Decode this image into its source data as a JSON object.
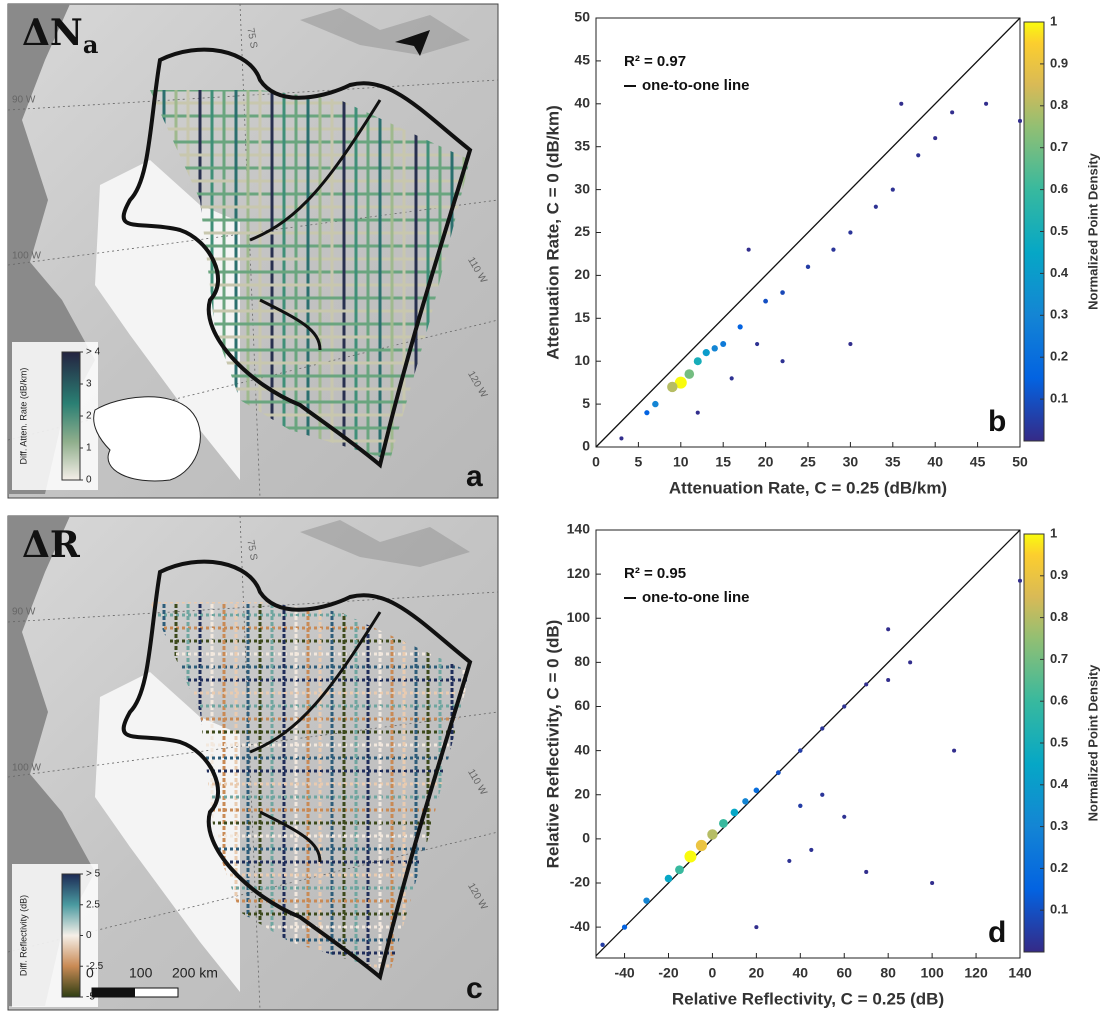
{
  "maps": [
    {
      "title": "ΔN",
      "title_subscript": "a",
      "panel": "a",
      "lat_label": "75 S",
      "lon_labels": [
        "90 W",
        "100 W",
        "110 W",
        "120 W"
      ],
      "colorbar": {
        "label": "Diff. Atten. Rate (dB/km)",
        "ticks": [
          0,
          1,
          2,
          3,
          {
            "value": 4,
            "label": "> 4"
          }
        ]
      }
    },
    {
      "title": "ΔR",
      "panel": "c",
      "lat_label": "75 S",
      "lon_labels": [
        "90 W",
        "100 W",
        "110 W",
        "120 W"
      ],
      "colorbar": {
        "label": "Diff. Reflectivity (dB)",
        "ticks": [
          -5,
          -2.5,
          0,
          2.5,
          {
            "value": 5,
            "label": "> 5"
          }
        ]
      },
      "scale_bar": {
        "ticks": [
          0,
          100,
          {
            "value": 200,
            "label": "200 km"
          }
        ]
      }
    }
  ],
  "chart_data": [
    {
      "type": "scatter",
      "panel": "b",
      "x_label": "Attenuation Rate, C = 0.25 (dB/km)",
      "y_label": "Attenuation Rate, C = 0 (dB/km)",
      "annotation": "R² = 0.97",
      "legend": "one-to-one line",
      "xlim": [
        0,
        50
      ],
      "ylim": [
        0,
        50
      ],
      "xticks": [
        0,
        5,
        10,
        15,
        20,
        25,
        30,
        35,
        40,
        45,
        50
      ],
      "yticks": [
        0,
        5,
        10,
        15,
        20,
        25,
        30,
        35,
        40,
        45,
        50
      ],
      "colorbar_label": "Normalized Point Density",
      "colormap": "parula",
      "clim": [
        0,
        1
      ],
      "cticks": [
        0.1,
        0.2,
        0.3,
        0.4,
        0.5,
        0.6,
        0.7,
        0.8,
        0.9,
        1
      ],
      "x": [
        10,
        9,
        11,
        12,
        13,
        14,
        15,
        7,
        6,
        17,
        20,
        22,
        25,
        28,
        30,
        33,
        35,
        38,
        40,
        42,
        46,
        50,
        36,
        19,
        22,
        30,
        12,
        18,
        3,
        16
      ],
      "y": [
        7.5,
        7,
        8.5,
        10,
        11,
        11.5,
        12,
        5,
        4,
        14,
        17,
        18,
        21,
        23,
        25,
        28,
        30,
        34,
        36,
        39,
        40,
        38,
        40,
        12,
        10,
        12,
        4,
        23,
        1,
        8
      ],
      "density": [
        1,
        0.8,
        0.7,
        0.5,
        0.4,
        0.3,
        0.25,
        0.3,
        0.15,
        0.15,
        0.1,
        0.08,
        0.05,
        0.03,
        0.03,
        0.02,
        0.02,
        0.02,
        0.01,
        0.01,
        0.01,
        0.01,
        0.01,
        0.02,
        0.02,
        0.01,
        0.01,
        0.01,
        0.01,
        0.02
      ]
    },
    {
      "type": "scatter",
      "panel": "d",
      "x_label": "Relative Reflectivity, C = 0.25 (dB)",
      "y_label": "Relative Reflectivity, C = 0 (dB)",
      "annotation": "R² = 0.95",
      "legend": "one-to-one line",
      "xlim": [
        -53,
        140
      ],
      "ylim": [
        -54,
        140
      ],
      "xticks": [
        -40,
        -20,
        0,
        20,
        40,
        60,
        80,
        100,
        120,
        140
      ],
      "yticks": [
        -40,
        -20,
        0,
        20,
        40,
        60,
        80,
        100,
        120,
        140
      ],
      "colorbar_label": "Normalized Point Density",
      "colormap": "parula",
      "clim": [
        0,
        1
      ],
      "cticks": [
        0.1,
        0.2,
        0.3,
        0.4,
        0.5,
        0.6,
        0.7,
        0.8,
        0.9,
        1
      ],
      "x": [
        -10,
        -5,
        0,
        -15,
        5,
        -20,
        10,
        -30,
        15,
        -40,
        20,
        30,
        40,
        50,
        60,
        70,
        80,
        90,
        40,
        50,
        35,
        60,
        100,
        110,
        140,
        -50,
        20,
        45,
        80,
        70
      ],
      "y": [
        -8,
        -3,
        2,
        -14,
        7,
        -18,
        12,
        -28,
        17,
        -40,
        22,
        30,
        40,
        50,
        60,
        70,
        72,
        80,
        15,
        20,
        -10,
        10,
        -20,
        40,
        117,
        -48,
        -40,
        -5,
        95,
        -15
      ],
      "density": [
        1,
        0.9,
        0.8,
        0.6,
        0.6,
        0.45,
        0.45,
        0.3,
        0.3,
        0.15,
        0.2,
        0.1,
        0.05,
        0.03,
        0.02,
        0.01,
        0.01,
        0.01,
        0.05,
        0.03,
        0.02,
        0.02,
        0.01,
        0.01,
        0.01,
        0.05,
        0.01,
        0.02,
        0.01,
        0.01
      ]
    }
  ]
}
